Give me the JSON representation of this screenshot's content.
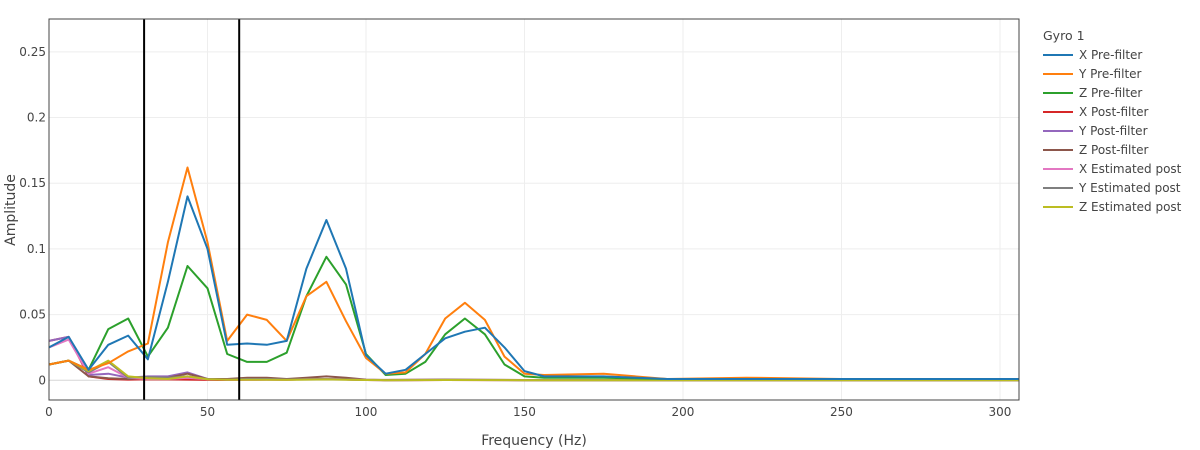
{
  "chart_data": {
    "type": "line",
    "title": "",
    "xlabel": "Frequency (Hz)",
    "ylabel": "Amplitude",
    "xlim": [
      0,
      306
    ],
    "ylim": [
      -0.015,
      0.275
    ],
    "xticks": [
      "0",
      "50",
      "100",
      "150",
      "200",
      "250",
      "300"
    ],
    "yticks": [
      "0",
      "0.05",
      "0.1",
      "0.15",
      "0.2",
      "0.25"
    ],
    "grid": true,
    "legend_title": "Gyro 1",
    "legend_position": "right",
    "vlines": [
      30,
      60
    ],
    "series": [
      {
        "name": "X Pre-filter",
        "color": "#1f77b4",
        "x": [
          0,
          6.2,
          12.5,
          18.7,
          25,
          31.2,
          37.5,
          43.7,
          50,
          56.2,
          62.5,
          68.7,
          75,
          81.2,
          87.5,
          93.7,
          100,
          106.2,
          112.5,
          118.7,
          125,
          131.2,
          137.5,
          143.7,
          150,
          156.2,
          175,
          195,
          220,
          250,
          280,
          306
        ],
        "y": [
          0.025,
          0.033,
          0.008,
          0.027,
          0.034,
          0.016,
          0.075,
          0.14,
          0.1,
          0.027,
          0.028,
          0.027,
          0.03,
          0.085,
          0.122,
          0.085,
          0.019,
          0.005,
          0.008,
          0.02,
          0.032,
          0.037,
          0.04,
          0.025,
          0.007,
          0.003,
          0.003,
          0.001,
          0.001,
          0.001,
          0.001,
          0.001
        ]
      },
      {
        "name": "Y Pre-filter",
        "color": "#ff7f0e",
        "x": [
          0,
          6.2,
          12.5,
          18.7,
          25,
          31.2,
          37.5,
          43.7,
          50,
          56.2,
          62.5,
          68.7,
          75,
          81.2,
          87.5,
          93.7,
          100,
          106.2,
          112.5,
          118.7,
          125,
          131.2,
          137.5,
          143.7,
          150,
          156.2,
          175,
          195,
          220,
          250,
          280,
          306
        ],
        "y": [
          0.012,
          0.015,
          0.008,
          0.013,
          0.022,
          0.028,
          0.105,
          0.162,
          0.105,
          0.03,
          0.05,
          0.046,
          0.03,
          0.064,
          0.075,
          0.045,
          0.017,
          0.005,
          0.006,
          0.02,
          0.047,
          0.059,
          0.046,
          0.018,
          0.005,
          0.004,
          0.005,
          0.001,
          0.002,
          0.001,
          0.001,
          0.001
        ]
      },
      {
        "name": "Z Pre-filter",
        "color": "#2ca02c",
        "x": [
          0,
          6.2,
          12.5,
          18.7,
          25,
          31.2,
          37.5,
          43.7,
          50,
          56.2,
          62.5,
          68.7,
          75,
          81.2,
          87.5,
          93.7,
          100,
          106.2,
          112.5,
          118.7,
          125,
          131.2,
          137.5,
          143.7,
          150,
          156.2,
          175,
          195,
          220,
          250,
          280,
          306
        ],
        "y": [
          0.012,
          0.015,
          0.008,
          0.039,
          0.047,
          0.018,
          0.04,
          0.087,
          0.07,
          0.02,
          0.014,
          0.014,
          0.021,
          0.064,
          0.094,
          0.073,
          0.02,
          0.004,
          0.005,
          0.014,
          0.035,
          0.047,
          0.035,
          0.012,
          0.003,
          0.002,
          0.002,
          0.001,
          0.001,
          0.001,
          0.001,
          0.001
        ]
      },
      {
        "name": "X Post-filter",
        "color": "#d62728",
        "x": [
          0,
          6.2,
          12.5,
          18.7,
          25,
          31.2,
          37.5,
          43.7,
          50,
          56.2,
          62.5,
          68.7,
          75,
          81.2,
          87.5,
          93.7,
          100,
          106.2,
          125,
          150,
          200,
          250,
          306
        ],
        "y": [
          0.03,
          0.033,
          0.003,
          0.001,
          0.0005,
          0.0008,
          0.0007,
          0.0005,
          0.0003,
          0.0002,
          0.0004,
          0.0005,
          0.0004,
          0.0008,
          0.001,
          0.0006,
          0.0002,
          0.0001,
          0.0002,
          0.0001,
          0.0,
          0.0,
          0.0
        ]
      },
      {
        "name": "Y Post-filter",
        "color": "#9467bd",
        "x": [
          0,
          6.2,
          12.5,
          18.7,
          25,
          31.2,
          37.5,
          43.7,
          50,
          56.2,
          62.5,
          68.7,
          75,
          81.2,
          87.5,
          93.7,
          100,
          106.2,
          125,
          150,
          200,
          250,
          306
        ],
        "y": [
          0.03,
          0.033,
          0.004,
          0.005,
          0.002,
          0.003,
          0.003,
          0.006,
          0.001,
          0.0005,
          0.001,
          0.001,
          0.0008,
          0.001,
          0.001,
          0.0008,
          0.0003,
          0.0002,
          0.0004,
          0.0002,
          0.0001,
          0.0001,
          0.0001
        ]
      },
      {
        "name": "Z Post-filter",
        "color": "#8c564b",
        "x": [
          0,
          6.2,
          12.5,
          18.7,
          25,
          31.2,
          37.5,
          43.7,
          50,
          56.2,
          62.5,
          68.7,
          75,
          81.2,
          87.5,
          93.7,
          100,
          106.2,
          125,
          150,
          200,
          250,
          306
        ],
        "y": [
          0.012,
          0.015,
          0.003,
          0.0015,
          0.001,
          0.002,
          0.002,
          0.005,
          0.001,
          0.001,
          0.002,
          0.002,
          0.001,
          0.002,
          0.003,
          0.002,
          0.0005,
          0.0003,
          0.0005,
          0.0002,
          0.0001,
          0.0001,
          0.0001
        ]
      },
      {
        "name": "X Estimated post",
        "color": "#e377c2",
        "x": [
          0,
          6.2,
          12.5,
          18.7,
          25,
          31.2,
          37.5,
          43.7,
          50,
          56.2,
          62.5,
          68.7,
          75,
          81.2,
          87.5,
          93.7,
          100,
          106.2,
          125,
          150,
          200,
          250,
          306
        ],
        "y": [
          0.025,
          0.031,
          0.005,
          0.01,
          0.002,
          0.001,
          0.001,
          0.002,
          0.0008,
          0.0004,
          0.0004,
          0.0005,
          0.0004,
          0.0008,
          0.001,
          0.0006,
          0.0002,
          0.0001,
          0.0002,
          0.0001,
          0.0,
          0.0,
          0.0
        ]
      },
      {
        "name": "Y Estimated post",
        "color": "#7f7f7f",
        "x": [
          0,
          6.2,
          12.5,
          18.7,
          25,
          31.2,
          37.5,
          43.7,
          50,
          56.2,
          62.5,
          68.7,
          75,
          81.2,
          87.5,
          93.7,
          100,
          106.2,
          125,
          150,
          200,
          250,
          306
        ],
        "y": [
          0.012,
          0.015,
          0.006,
          0.014,
          0.002,
          0.0025,
          0.002,
          0.003,
          0.001,
          0.0005,
          0.001,
          0.001,
          0.0006,
          0.0008,
          0.0009,
          0.0006,
          0.0002,
          0.0001,
          0.0003,
          0.0001,
          0.0001,
          0.0,
          0.0
        ]
      },
      {
        "name": "Z Estimated post",
        "color": "#bcbd22",
        "x": [
          0,
          6.2,
          12.5,
          18.7,
          25,
          31.2,
          37.5,
          43.7,
          50,
          56.2,
          62.5,
          68.7,
          75,
          81.2,
          87.5,
          93.7,
          100,
          106.2,
          125,
          150,
          200,
          250,
          306
        ],
        "y": [
          0.012,
          0.015,
          0.007,
          0.015,
          0.003,
          0.0015,
          0.001,
          0.003,
          0.0008,
          0.0004,
          0.0004,
          0.0004,
          0.0003,
          0.0005,
          0.0007,
          0.0004,
          0.0002,
          0.0001,
          0.0002,
          0.0001,
          0.0,
          0.0,
          0.0
        ]
      }
    ]
  }
}
